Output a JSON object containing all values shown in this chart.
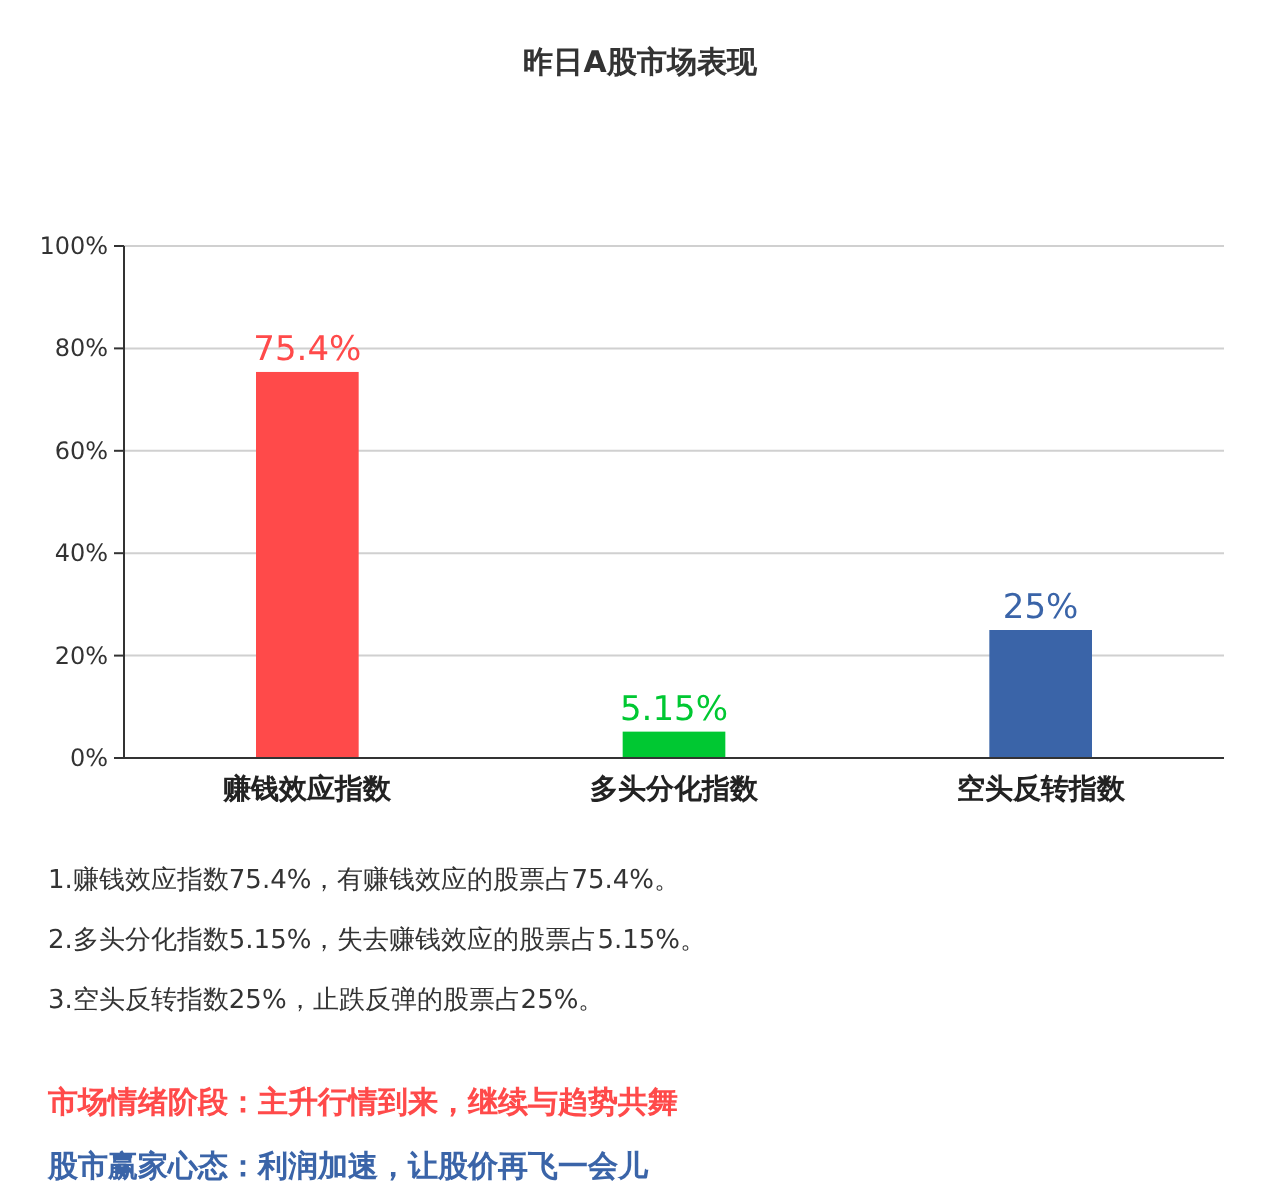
{
  "chart_data": {
    "type": "bar",
    "title": "昨日A股市场表现",
    "categories": [
      "赚钱效应指数",
      "多头分化指数",
      "空头反转指数"
    ],
    "values": [
      75.4,
      5.15,
      25
    ],
    "colors": [
      "#ff4a4a",
      "#00c832",
      "#3a64a8"
    ],
    "value_labels": [
      "75.4%",
      "5.15%",
      "25%"
    ],
    "ylim": [
      0,
      100
    ],
    "yticks": [
      {
        "value": 0,
        "label": "0%"
      },
      {
        "value": 20,
        "label": "20%"
      },
      {
        "value": 40,
        "label": "40%"
      },
      {
        "value": 60,
        "label": "60%"
      },
      {
        "value": 80,
        "label": "80%"
      },
      {
        "value": 100,
        "label": "100%"
      }
    ],
    "grid": "y",
    "annotations": [
      "1.赚钱效应指数75.4%，有赚钱效应的股票占75.4%。",
      "2.多头分化指数5.15%，失去赚钱效应的股票占5.15%。",
      "3.空头反转指数25%，止跌反弹的股票占25%。",
      "市场情绪阶段：主升行情到来，继续与趋势共舞",
      "股市赢家心态：利润加速，让股价再飞一会儿"
    ]
  }
}
